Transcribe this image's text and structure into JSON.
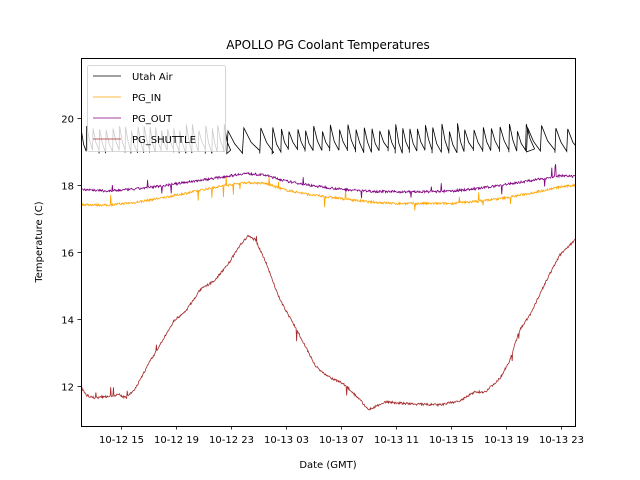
{
  "chart_data": {
    "type": "line",
    "title": "APOLLO PG Coolant Temperatures",
    "xlabel": "Date (GMT)",
    "ylabel": "Temperature (C)",
    "x_units": "hours since 10-12 00:00 GMT",
    "xlim": [
      12.1,
      48.1
    ],
    "ylim": [
      10.8,
      21.8
    ],
    "grid": false,
    "legend_position": "top-left",
    "x_ticks": [
      {
        "value": 15,
        "label": "10-12 15"
      },
      {
        "value": 19,
        "label": "10-12 19"
      },
      {
        "value": 23,
        "label": "10-12 23"
      },
      {
        "value": 27,
        "label": "10-13 03"
      },
      {
        "value": 31,
        "label": "10-13 07"
      },
      {
        "value": 35,
        "label": "10-13 11"
      },
      {
        "value": 39,
        "label": "10-13 15"
      },
      {
        "value": 43,
        "label": "10-13 19"
      },
      {
        "value": 47,
        "label": "10-13 23"
      }
    ],
    "y_ticks": [
      {
        "value": 12,
        "label": "12"
      },
      {
        "value": 14,
        "label": "14"
      },
      {
        "value": 16,
        "label": "16"
      },
      {
        "value": 18,
        "label": "18"
      },
      {
        "value": 20,
        "label": "20"
      }
    ],
    "series": [
      {
        "name": "Utah Air",
        "color": "#000000",
        "pattern": "sawtooth",
        "low": 19.0,
        "high": 19.85,
        "cycle_hours": [
          {
            "from": 12.1,
            "to": 22.7,
            "period": 0.45
          },
          {
            "from": 22.7,
            "to": 26.0,
            "period": 1.1
          },
          {
            "from": 26.0,
            "to": 44.5,
            "period": 0.6
          },
          {
            "from": 44.5,
            "to": 48.1,
            "period": 0.95
          }
        ]
      },
      {
        "name": "PG_IN",
        "color": "#FFA500",
        "x": [
          12.1,
          14.0,
          16.0,
          18.0,
          20.0,
          22.0,
          24.0,
          25.5,
          27.0,
          29.0,
          31.0,
          33.0,
          35.0,
          37.0,
          39.0,
          41.0,
          43.0,
          45.0,
          47.0,
          48.1
        ],
        "y": [
          17.42,
          17.4,
          17.48,
          17.62,
          17.78,
          17.95,
          18.08,
          18.05,
          17.85,
          17.7,
          17.6,
          17.5,
          17.45,
          17.45,
          17.45,
          17.52,
          17.62,
          17.78,
          17.95,
          18.0
        ]
      },
      {
        "name": "PG_OUT",
        "color": "#800080",
        "x": [
          12.1,
          14.0,
          16.0,
          18.0,
          20.0,
          22.0,
          24.0,
          25.5,
          27.0,
          29.0,
          31.0,
          33.0,
          35.0,
          37.0,
          39.0,
          41.0,
          43.0,
          45.0,
          47.0,
          48.1
        ],
        "y": [
          17.88,
          17.82,
          17.88,
          17.98,
          18.1,
          18.22,
          18.35,
          18.3,
          18.12,
          17.98,
          17.88,
          17.82,
          17.8,
          17.8,
          17.82,
          17.9,
          18.02,
          18.15,
          18.28,
          18.25
        ]
      },
      {
        "name": "PG_SHUTTLE",
        "color": "#A52A2A",
        "x": [
          12.1,
          12.46,
          13.1,
          14.2,
          14.9,
          15.37,
          16.0,
          17.1,
          17.85,
          18.9,
          19.66,
          20.75,
          21.85,
          22.9,
          23.66,
          24.25,
          24.8,
          25.48,
          26.57,
          28.0,
          29.1,
          29.85,
          31.3,
          32.4,
          33.0,
          34.2,
          36.0,
          38.2,
          39.66,
          40.75,
          41.5,
          42.6,
          43.3,
          44.0,
          44.76,
          45.85,
          46.9,
          48.1
        ],
        "y": [
          11.97,
          11.73,
          11.64,
          11.7,
          11.73,
          11.64,
          11.88,
          12.72,
          13.22,
          13.97,
          14.2,
          14.86,
          15.16,
          15.7,
          16.2,
          16.48,
          16.36,
          15.76,
          14.57,
          13.52,
          12.63,
          12.33,
          12.03,
          11.58,
          11.28,
          11.52,
          11.46,
          11.43,
          11.55,
          11.82,
          11.82,
          12.24,
          12.78,
          13.67,
          14.12,
          15.07,
          15.9,
          16.39
        ]
      }
    ]
  }
}
